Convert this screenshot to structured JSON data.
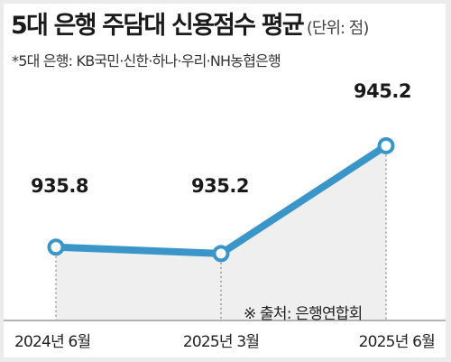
{
  "chart_data": {
    "type": "area",
    "title": "5대 은행 주담대 신용점수 평균",
    "unit": "(단위: 점)",
    "subtitle": "*5대 은행: KB국민·신한·하나·우리·NH농협은행",
    "source": "※ 출처: 은행연합회",
    "categories": [
      "2024년 6월",
      "2025년 3월",
      "2025년 6월"
    ],
    "values": [
      935.8,
      935.2,
      945.2
    ],
    "value_labels": [
      "935.8",
      "935.2",
      "945.2"
    ],
    "ylim": [
      930.0,
      948.0
    ],
    "grid": false,
    "colors": {
      "line": "#3a96c9",
      "fill": "#efefef",
      "marker_fill": "#ffffff",
      "text": "#1a1a1a"
    }
  }
}
